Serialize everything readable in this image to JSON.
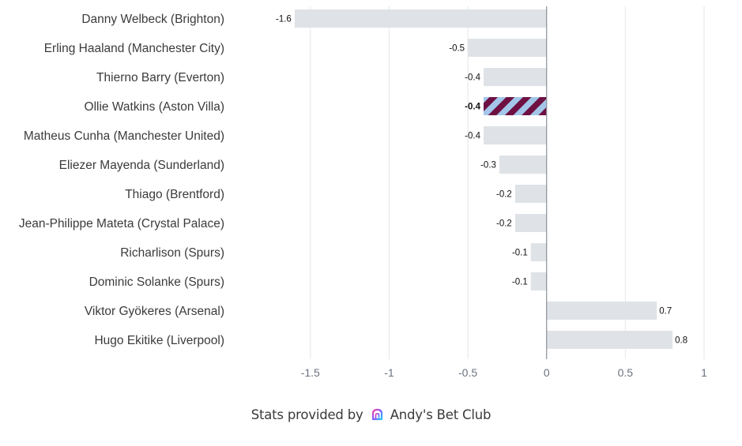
{
  "chart_data": {
    "type": "bar",
    "orientation": "horizontal",
    "categories": [
      "Danny Welbeck (Brighton)",
      "Erling Haaland (Manchester City)",
      "Thierno Barry (Everton)",
      "Ollie Watkins (Aston Villa)",
      "Matheus Cunha (Manchester United)",
      "Eliezer Mayenda (Sunderland)",
      "Thiago (Brentford)",
      "Jean-Philippe Mateta (Crystal Palace)",
      "Richarlison (Spurs)",
      "Dominic Solanke (Spurs)",
      "Viktor Gyökeres (Arsenal)",
      "Hugo Ekitike (Liverpool)"
    ],
    "values": [
      -1.6,
      -0.5,
      -0.4,
      -0.4,
      -0.4,
      -0.3,
      -0.2,
      -0.2,
      -0.1,
      -0.1,
      0.7,
      0.8
    ],
    "value_labels": [
      "-1.6",
      "-0.5",
      "-0.4",
      "-0.4",
      "-0.4",
      "-0.3",
      "-0.2",
      "-0.2",
      "-0.1",
      "-0.1",
      "0.7",
      "0.8"
    ],
    "highlight": "Ollie Watkins (Aston Villa)",
    "xlim": [
      -1.8,
      1.0
    ],
    "xticks": [
      -1.5,
      -1,
      -0.5,
      0,
      0.5,
      1
    ],
    "xtick_labels": [
      "-1.5",
      "-1",
      "-0.5",
      "0",
      "0.5",
      "1"
    ],
    "title": "",
    "xlabel": "",
    "ylabel": "",
    "grid": "vertical",
    "colors": {
      "bar": "#dfe3e7",
      "highlight_primary": "#a3c6e9",
      "highlight_stripe": "#6e1042",
      "gridline": "#e6e6e6",
      "zero_line": "#8a8f96"
    }
  },
  "footer": {
    "prefix": "Stats provided by",
    "brand": "Andy's Bet Club",
    "logo_icon": "abc-logo-icon",
    "logo_colors": [
      "#ff3ea5",
      "#7b5cff",
      "#27c2ff"
    ]
  }
}
